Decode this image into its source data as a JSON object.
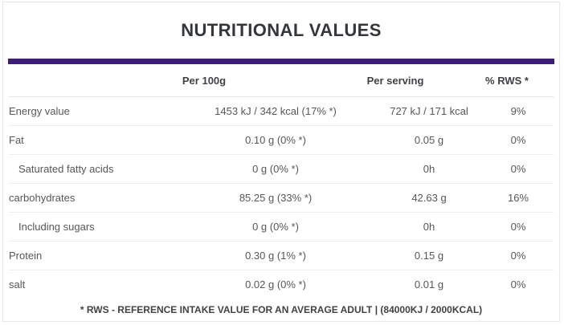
{
  "title": "NUTRITIONAL VALUES",
  "accent_color": "#3d1d78",
  "table": {
    "columns": {
      "per_100g": "Per 100g",
      "per_serving": "Per serving",
      "rws": "% RWS *"
    },
    "rows": [
      {
        "label": "Energy value",
        "indent": false,
        "per_100g": "1453 kJ / 342 kcal (17% *)",
        "per_serving": "727 kJ / 171 kcal",
        "rws": "9%"
      },
      {
        "label": "Fat",
        "indent": false,
        "per_100g": "0.10 g (0% *)",
        "per_serving": "0.05 g",
        "rws": "0%"
      },
      {
        "label": "Saturated fatty acids",
        "indent": true,
        "per_100g": "0 g (0% *)",
        "per_serving": "0h",
        "rws": "0%"
      },
      {
        "label": "carbohydrates",
        "indent": false,
        "per_100g": "85.25 g (33% *)",
        "per_serving": "42.63 g",
        "rws": "16%"
      },
      {
        "label": "Including sugars",
        "indent": true,
        "per_100g": "0 g (0% *)",
        "per_serving": "0h",
        "rws": "0%"
      },
      {
        "label": "Protein",
        "indent": false,
        "per_100g": "0.30 g (1% *)",
        "per_serving": "0.15 g",
        "rws": "0%"
      },
      {
        "label": "salt",
        "indent": false,
        "per_100g": "0.02 g (0% *)",
        "per_serving": "0.01 g",
        "rws": "0%"
      }
    ],
    "footnote": "* RWS - REFERENCE INTAKE VALUE FOR AN AVERAGE ADULT | (84000KJ / 2000KCAL)"
  }
}
